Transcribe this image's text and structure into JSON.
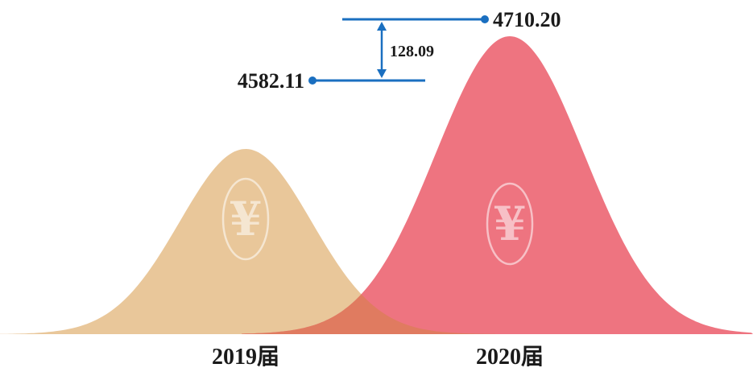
{
  "chart_data": {
    "type": "area",
    "categories": [
      "2019届",
      "2020届"
    ],
    "values": [
      4582.11,
      4710.2
    ],
    "value_labels": [
      "4582.11",
      "4710.20"
    ],
    "difference": 128.09,
    "difference_label": "128.09",
    "series_colors": [
      "#e9c79a",
      "#ee7480"
    ],
    "overlap_color": "#e07b60",
    "marker_color": "#1a6fc0",
    "icon": "yen-icon",
    "grid": false
  }
}
